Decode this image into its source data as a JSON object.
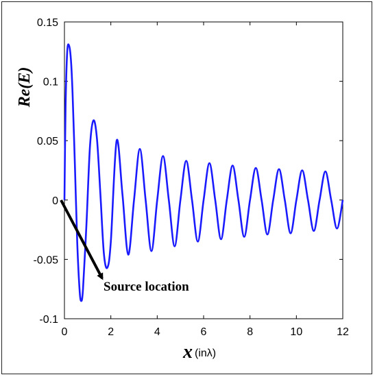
{
  "chart_data": {
    "type": "line",
    "title": "",
    "xlabel_main": "x",
    "xlabel_unit": "(inλ)",
    "ylabel": "Re(E)",
    "xlim": [
      0,
      12
    ],
    "ylim": [
      -0.1,
      0.15
    ],
    "x_ticks": [
      0,
      2,
      4,
      6,
      8,
      10,
      12
    ],
    "x_tick_labels": [
      "0",
      "2",
      "4",
      "6",
      "8",
      "10",
      "12"
    ],
    "y_ticks": [
      -0.1,
      -0.05,
      0,
      0.05,
      0.1,
      0.15
    ],
    "y_tick_labels": [
      "-0.1",
      "-0.05",
      "0",
      "0.05",
      "0.1",
      "0.15"
    ],
    "grid": false,
    "series": [
      {
        "color": "#1a1aff",
        "x": [
          0,
          0.05,
          0.12,
          0.2,
          0.28,
          0.35,
          0.45,
          0.55,
          0.65,
          0.72,
          0.8,
          0.95,
          1.1,
          1.25,
          1.4,
          1.55,
          1.7,
          1.85,
          2.0,
          2.25,
          2.5,
          2.75,
          3.0,
          3.25,
          3.5,
          3.75,
          4.0,
          4.25,
          4.5,
          4.75,
          5.0,
          5.25,
          5.5,
          5.75,
          6.0,
          6.25,
          6.5,
          6.75,
          7.0,
          7.25,
          7.5,
          7.75,
          8.0,
          8.25,
          8.5,
          8.75,
          9.0,
          9.25,
          9.5,
          9.75,
          10.0,
          10.25,
          10.5,
          10.75,
          11.0,
          11.25,
          11.5,
          11.75,
          12.0
        ],
        "values": [
          0.0,
          0.08,
          0.125,
          0.13,
          0.118,
          0.09,
          0.03,
          -0.035,
          -0.075,
          -0.085,
          -0.075,
          -0.02,
          0.045,
          0.067,
          0.052,
          0.005,
          -0.045,
          -0.057,
          -0.035,
          0.05,
          0.005,
          -0.046,
          0.0,
          0.043,
          0.0,
          -0.043,
          0.0,
          0.037,
          0.0,
          -0.039,
          0.0,
          0.033,
          0.0,
          -0.035,
          0.0,
          0.031,
          0.0,
          -0.033,
          0.0,
          0.029,
          0.0,
          -0.031,
          0.0,
          0.027,
          0.0,
          -0.029,
          0.0,
          0.026,
          0.0,
          -0.028,
          0.0,
          0.025,
          0.0,
          -0.026,
          0.0,
          0.024,
          0.0,
          -0.024,
          0.0
        ]
      }
    ],
    "annotation": {
      "text": "Source location",
      "points_to": [
        0,
        0
      ]
    }
  }
}
